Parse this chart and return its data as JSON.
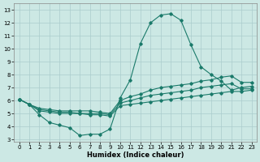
{
  "xlabel": "Humidex (Indice chaleur)",
  "background_color": "#cce8e4",
  "grid_color": "#aacccc",
  "line_color": "#1a7a6a",
  "xlim": [
    -0.5,
    23.5
  ],
  "ylim": [
    2.8,
    13.5
  ],
  "xticks": [
    0,
    1,
    2,
    3,
    4,
    5,
    6,
    7,
    8,
    9,
    10,
    11,
    12,
    13,
    14,
    15,
    16,
    17,
    18,
    19,
    20,
    21,
    22,
    23
  ],
  "yticks": [
    3,
    4,
    5,
    6,
    7,
    8,
    9,
    10,
    11,
    12,
    13
  ],
  "series1_x": [
    0,
    1,
    2,
    3,
    4,
    5,
    6,
    7,
    8,
    9,
    10,
    11,
    12,
    13,
    14,
    15,
    16,
    17,
    18,
    19,
    20,
    21,
    22,
    23
  ],
  "series1_y": [
    6.1,
    5.7,
    4.9,
    4.3,
    4.1,
    3.9,
    3.3,
    3.4,
    3.4,
    3.8,
    6.2,
    7.6,
    10.4,
    12.0,
    12.6,
    12.7,
    12.2,
    10.3,
    8.6,
    8.0,
    7.5,
    6.8,
    7.0,
    7.1
  ],
  "series2_x": [
    0,
    1,
    2,
    3,
    4,
    5,
    6,
    7,
    8,
    9,
    10,
    11,
    12,
    13,
    14,
    15,
    16,
    17,
    18,
    19,
    20,
    21,
    22,
    23
  ],
  "series2_y": [
    6.1,
    5.7,
    5.4,
    5.3,
    5.2,
    5.2,
    5.2,
    5.2,
    5.1,
    5.0,
    6.0,
    6.3,
    6.5,
    6.8,
    7.0,
    7.1,
    7.2,
    7.3,
    7.5,
    7.6,
    7.8,
    7.9,
    7.4,
    7.4
  ],
  "series3_x": [
    0,
    1,
    2,
    3,
    4,
    5,
    6,
    7,
    8,
    9,
    10,
    11,
    12,
    13,
    14,
    15,
    16,
    17,
    18,
    19,
    20,
    21,
    22,
    23
  ],
  "series3_y": [
    6.1,
    5.7,
    5.3,
    5.2,
    5.1,
    5.1,
    5.0,
    5.0,
    5.0,
    4.9,
    5.8,
    6.0,
    6.2,
    6.4,
    6.5,
    6.6,
    6.7,
    6.8,
    7.0,
    7.1,
    7.2,
    7.3,
    6.9,
    6.9
  ],
  "series4_x": [
    0,
    1,
    2,
    3,
    4,
    5,
    6,
    7,
    8,
    9,
    10,
    11,
    12,
    13,
    14,
    15,
    16,
    17,
    18,
    19,
    20,
    21,
    22,
    23
  ],
  "series4_y": [
    6.1,
    5.7,
    5.2,
    5.1,
    5.0,
    5.0,
    5.0,
    4.9,
    4.9,
    4.8,
    5.6,
    5.7,
    5.8,
    5.9,
    6.0,
    6.1,
    6.2,
    6.3,
    6.4,
    6.5,
    6.6,
    6.7,
    6.7,
    6.8
  ],
  "linewidth": 0.8,
  "markersize": 1.8,
  "ticklabelsize": 5.0,
  "xlabelsize": 6.0
}
